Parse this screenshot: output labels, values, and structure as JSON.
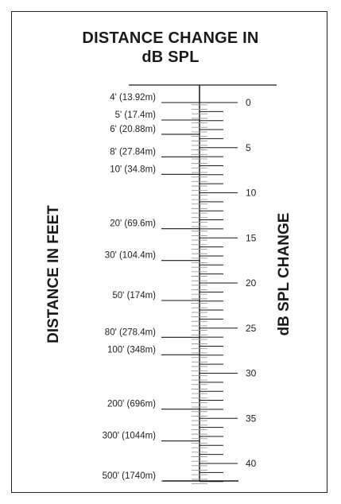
{
  "title": {
    "line1": "DISTANCE CHANGE IN",
    "line2": "dB SPL"
  },
  "left_axis_title": "DISTANCE IN FEET",
  "right_axis_title": "dB SPL CHANGE",
  "colors": {
    "ink": "#1a1a1a",
    "minor_tick": "#9a9a9a"
  },
  "chart_data": {
    "type": "nomogram",
    "db_ticks": [
      {
        "value": 0,
        "label": "0"
      },
      {
        "value": 5,
        "label": "5"
      },
      {
        "value": 10,
        "label": "10"
      },
      {
        "value": 15,
        "label": "15"
      },
      {
        "value": 20,
        "label": "20"
      },
      {
        "value": 25,
        "label": "25"
      },
      {
        "value": 30,
        "label": "30"
      },
      {
        "value": 35,
        "label": "35"
      },
      {
        "value": 40,
        "label": "40"
      }
    ],
    "distance_marks": [
      {
        "feet": 4,
        "label": "4' (13.92m)"
      },
      {
        "feet": 5,
        "label": "5' (17.4m)"
      },
      {
        "feet": 6,
        "label": "6' (20.88m)"
      },
      {
        "feet": 8,
        "label": "8' (27.84m)"
      },
      {
        "feet": 10,
        "label": "10' (34.8m)"
      },
      {
        "feet": 20,
        "label": "20' (69.6m)"
      },
      {
        "feet": 30,
        "label": "30' (104.4m)"
      },
      {
        "feet": 50,
        "label": "50' (174m)"
      },
      {
        "feet": 80,
        "label": "80' (278.4m)"
      },
      {
        "feet": 100,
        "label": "100' (348m)"
      },
      {
        "feet": 200,
        "label": "200' (696m)"
      },
      {
        "feet": 300,
        "label": "300' (1044m)"
      },
      {
        "feet": 500,
        "label": "500' (1740m)"
      }
    ],
    "reference_feet": 4
  }
}
